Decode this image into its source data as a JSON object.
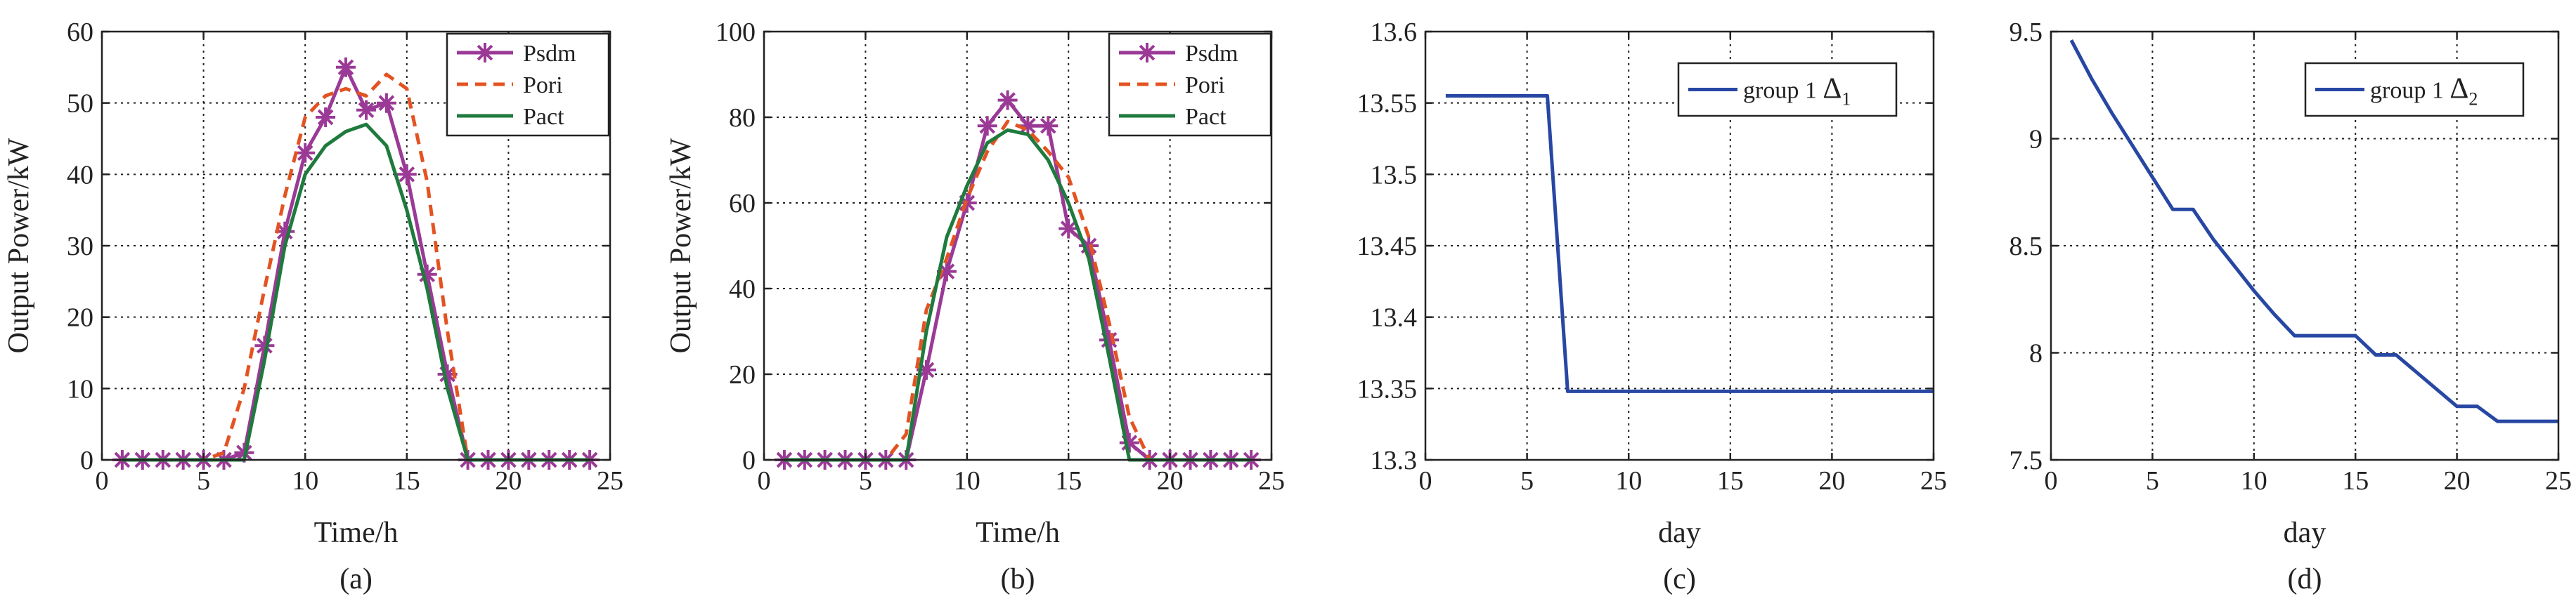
{
  "colors": {
    "psdm": "#9B3A96",
    "pori": "#E35322",
    "pact": "#1F7A3D",
    "group": "#2747A3"
  },
  "chart_data": [
    {
      "type": "line",
      "panel_label": "(a)",
      "xlabel": "Time/h",
      "ylabel": "Output Power/kW",
      "xlim": [
        0,
        25
      ],
      "ylim": [
        0,
        60
      ],
      "xticks": [
        0,
        5,
        10,
        15,
        20,
        25
      ],
      "yticks": [
        0,
        10,
        20,
        30,
        40,
        50,
        60
      ],
      "xtick_labels": [
        "0",
        "5",
        "10",
        "15",
        "20",
        "25"
      ],
      "ytick_labels": [
        "0",
        "10",
        "20",
        "30",
        "40",
        "50",
        "60"
      ],
      "legend_position": "top-right",
      "series": [
        {
          "name": "Psdm",
          "style": "solid-star",
          "color_key": "psdm",
          "x": [
            1,
            2,
            3,
            4,
            5,
            6,
            7,
            8,
            9,
            10,
            11,
            12,
            13,
            14,
            15,
            16,
            17,
            18,
            19,
            20,
            21,
            22,
            23,
            24
          ],
          "y": [
            0,
            0,
            0,
            0,
            0,
            0,
            1,
            16,
            32,
            43,
            48,
            55,
            49,
            50,
            40,
            26,
            12,
            0,
            0,
            0,
            0,
            0,
            0,
            0
          ]
        },
        {
          "name": "Pori",
          "style": "dashed",
          "color_key": "pori",
          "x": [
            1,
            2,
            3,
            4,
            5,
            6,
            7,
            8,
            9,
            10,
            11,
            12,
            13,
            14,
            15,
            16,
            17,
            18,
            19,
            20,
            21,
            22,
            23,
            24
          ],
          "y": [
            0,
            0,
            0,
            0,
            0,
            1,
            10,
            24,
            37,
            48,
            51,
            52,
            51,
            54,
            52,
            39,
            18,
            0,
            0,
            0,
            0,
            0,
            0,
            0
          ]
        },
        {
          "name": "Pact",
          "style": "solid",
          "color_key": "pact",
          "x": [
            1,
            2,
            3,
            4,
            5,
            6,
            7,
            8,
            9,
            10,
            11,
            12,
            13,
            14,
            15,
            16,
            17,
            18,
            19,
            20,
            21,
            22,
            23,
            24
          ],
          "y": [
            0,
            0,
            0,
            0,
            0,
            0,
            0,
            14,
            30,
            40,
            44,
            46,
            47,
            44,
            35,
            24,
            10,
            0,
            0,
            0,
            0,
            0,
            0,
            0
          ]
        }
      ]
    },
    {
      "type": "line",
      "panel_label": "(b)",
      "xlabel": "Time/h",
      "ylabel": "Output Power/kW",
      "xlim": [
        0,
        25
      ],
      "ylim": [
        0,
        100
      ],
      "xticks": [
        0,
        5,
        10,
        15,
        20,
        25
      ],
      "yticks": [
        0,
        20,
        40,
        60,
        80,
        100
      ],
      "xtick_labels": [
        "0",
        "5",
        "10",
        "15",
        "20",
        "25"
      ],
      "ytick_labels": [
        "0",
        "20",
        "40",
        "60",
        "80",
        "100"
      ],
      "legend_position": "top-right",
      "series": [
        {
          "name": "Psdm",
          "style": "solid-star",
          "color_key": "psdm",
          "x": [
            1,
            2,
            3,
            4,
            5,
            6,
            7,
            8,
            9,
            10,
            11,
            12,
            13,
            14,
            15,
            16,
            17,
            18,
            19,
            20,
            21,
            22,
            23,
            24
          ],
          "y": [
            0,
            0,
            0,
            0,
            0,
            0,
            0,
            21,
            44,
            60,
            78,
            84,
            78,
            78,
            54,
            50,
            28,
            4,
            0,
            0,
            0,
            0,
            0,
            0
          ]
        },
        {
          "name": "Pori",
          "style": "dashed",
          "color_key": "pori",
          "x": [
            1,
            2,
            3,
            4,
            5,
            6,
            7,
            8,
            9,
            10,
            11,
            12,
            13,
            14,
            15,
            16,
            17,
            18,
            19,
            20,
            21,
            22,
            23,
            24
          ],
          "y": [
            0,
            0,
            0,
            0,
            0,
            0,
            6,
            35,
            47,
            61,
            72,
            79,
            77,
            72,
            66,
            52,
            32,
            10,
            0,
            0,
            0,
            0,
            0,
            0
          ]
        },
        {
          "name": "Pact",
          "style": "solid",
          "color_key": "pact",
          "x": [
            1,
            2,
            3,
            4,
            5,
            6,
            7,
            8,
            9,
            10,
            11,
            12,
            13,
            14,
            15,
            16,
            17,
            18,
            19,
            20,
            21,
            22,
            23,
            24
          ],
          "y": [
            0,
            0,
            0,
            0,
            0,
            0,
            0,
            30,
            52,
            64,
            74,
            77,
            76,
            70,
            60,
            47,
            24,
            0,
            0,
            0,
            0,
            0,
            0,
            0
          ]
        }
      ]
    },
    {
      "type": "line",
      "panel_label": "(c)",
      "xlabel": "day",
      "ylabel": "",
      "xlim": [
        0,
        25
      ],
      "ylim": [
        13.3,
        13.6
      ],
      "xticks": [
        0,
        5,
        10,
        15,
        20,
        25
      ],
      "yticks": [
        13.3,
        13.35,
        13.4,
        13.45,
        13.5,
        13.55,
        13.6
      ],
      "xtick_labels": [
        "0",
        "5",
        "10",
        "15",
        "20",
        "25"
      ],
      "ytick_labels": [
        "13.3",
        "13.35",
        "13.4",
        "13.45",
        "13.5",
        "13.55",
        "13.6"
      ],
      "legend_position": "top-right",
      "legend_text": "group 1",
      "legend_symbol": "Δ",
      "legend_sub": "1",
      "series": [
        {
          "name": "group 1 Δ1",
          "style": "solid",
          "color_key": "group",
          "x": [
            1,
            6,
            7,
            25
          ],
          "y": [
            13.555,
            13.555,
            13.348,
            13.348
          ]
        }
      ]
    },
    {
      "type": "line",
      "panel_label": "(d)",
      "xlabel": "day",
      "ylabel": "",
      "xlim": [
        0,
        25
      ],
      "ylim": [
        7.5,
        9.5
      ],
      "xticks": [
        0,
        5,
        10,
        15,
        20,
        25
      ],
      "yticks": [
        7.5,
        8,
        8.5,
        9,
        9.5
      ],
      "xtick_labels": [
        "0",
        "5",
        "10",
        "15",
        "20",
        "25"
      ],
      "ytick_labels": [
        "7.5",
        "8",
        "8.5",
        "9",
        "9.5"
      ],
      "legend_position": "top-right",
      "legend_text": "group 1",
      "legend_symbol": "Δ",
      "legend_sub": "2",
      "series": [
        {
          "name": "group 1 Δ2",
          "style": "solid",
          "color_key": "group",
          "x": [
            1,
            2,
            3,
            4,
            5,
            6,
            7,
            8,
            9,
            10,
            11,
            12,
            13,
            14,
            15,
            16,
            17,
            18,
            19,
            20,
            21,
            22,
            23,
            24,
            25
          ],
          "y": [
            9.46,
            9.28,
            9.12,
            8.97,
            8.82,
            8.67,
            8.67,
            8.53,
            8.41,
            8.29,
            8.18,
            8.08,
            8.08,
            8.08,
            8.08,
            7.99,
            7.99,
            7.91,
            7.83,
            7.75,
            7.75,
            7.68,
            7.68,
            7.68,
            7.68
          ]
        }
      ]
    }
  ]
}
